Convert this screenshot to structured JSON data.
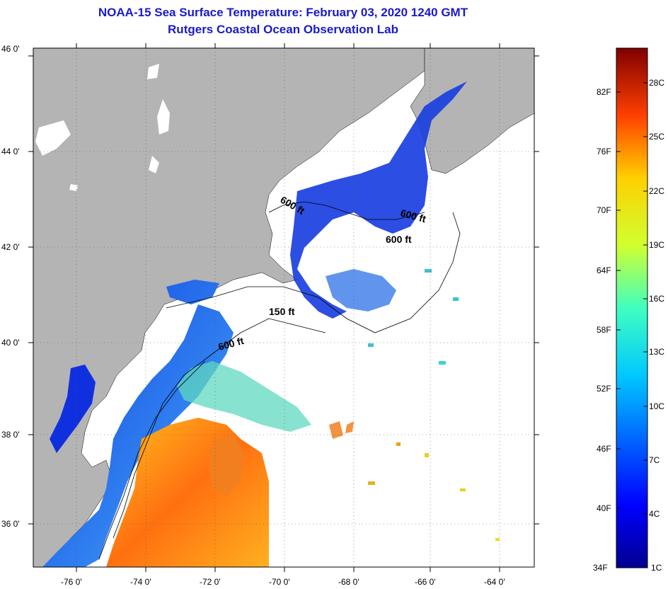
{
  "title": {
    "line1": "NOAA-15 Sea Surface Temperature:  February 03, 2020 1240 GMT",
    "line2": "Rutgers Coastal Ocean Observation Lab"
  },
  "map": {
    "lat_labels": [
      "46 0'",
      "44 0'",
      "42 0'",
      "40 0'",
      "38 0'",
      "36 0'"
    ],
    "lon_labels": [
      "-76 0'",
      "-74 0'",
      "-72 0'",
      "-70 0'",
      "-68 0'",
      "-66 0'",
      "-64 0'"
    ],
    "contour_labels": [
      "600 ft",
      "600 ft",
      "600 ft",
      "150 ft",
      "600 ft"
    ],
    "colors": {
      "land": "#b4b4b4",
      "cloud": "#ffffff",
      "cold": "#1e3fd8",
      "warm": "#f0a020"
    }
  },
  "colorbar": {
    "fahrenheit": [
      "82F",
      "76F",
      "70F",
      "64F",
      "58F",
      "52F",
      "46F",
      "40F",
      "34F"
    ],
    "celsius": [
      "28C",
      "25C",
      "22C",
      "19C",
      "16C",
      "13C",
      "10C",
      "7C",
      "4C",
      "1C"
    ]
  }
}
